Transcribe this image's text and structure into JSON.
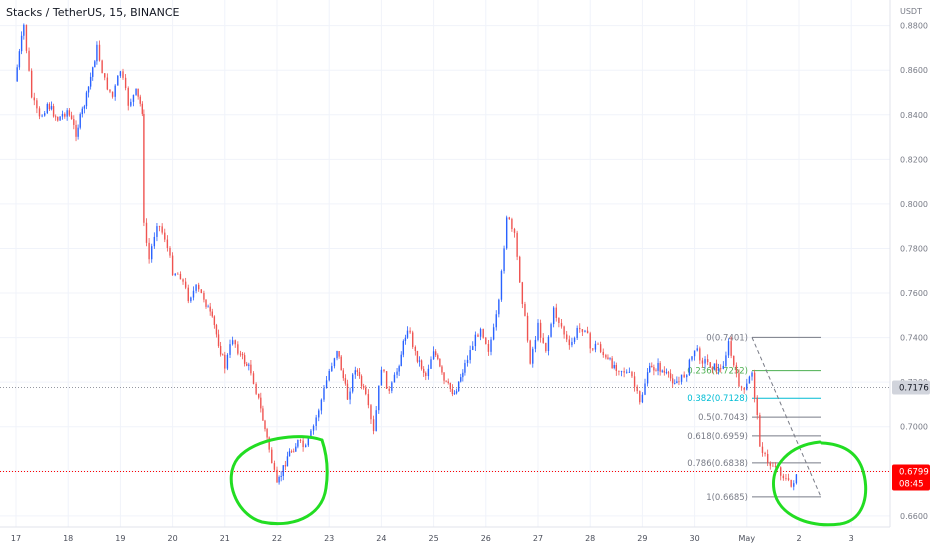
{
  "header": {
    "title": "Stacks / TetherUS, 15, BINANCE"
  },
  "axis": {
    "currency": "USDT",
    "y_ticks": [
      "0.8800",
      "0.8600",
      "0.8400",
      "0.8200",
      "0.8000",
      "0.7800",
      "0.7600",
      "0.7400",
      "0.7200",
      "0.7000",
      "0.6800",
      "0.6600"
    ],
    "x_ticks": [
      "17",
      "18",
      "19",
      "20",
      "21",
      "22",
      "23",
      "24",
      "25",
      "26",
      "27",
      "28",
      "29",
      "30",
      "May",
      "2",
      "3"
    ]
  },
  "price_labels": {
    "last_price": "0.6799",
    "countdown": "08:45",
    "ref_price": "0.7176"
  },
  "fib": {
    "levels": [
      {
        "label": "0(0.7401)",
        "value": 0.7401,
        "color": "#787b86"
      },
      {
        "label": "0.236(0.7252)",
        "value": 0.7252,
        "color": "#4caf50"
      },
      {
        "label": "0.382(0.7128)",
        "value": 0.7128,
        "color": "#00bcd4"
      },
      {
        "label": "0.5(0.7043)",
        "value": 0.7043,
        "color": "#787b86"
      },
      {
        "label": "0.618(0.6959)",
        "value": 0.6959,
        "color": "#787b86"
      },
      {
        "label": "0.786(0.6838)",
        "value": 0.6838,
        "color": "#787b86"
      },
      {
        "label": "1(0.6685)",
        "value": 0.6685,
        "color": "#787b86"
      }
    ]
  },
  "colors": {
    "up": "#2962ff",
    "down": "#ef5350",
    "annotation": "#22dd22",
    "last_price_bg": "#ff0000",
    "ref_price_bg": "#d1d4dc"
  },
  "chart_data": {
    "type": "line",
    "title": "Stacks / TetherUS, 15, BINANCE",
    "ylim": [
      0.655,
      0.8915
    ],
    "y_unit": "USDT",
    "series": [
      {
        "x": [
          16.98,
          17.15,
          17.3,
          17.45,
          17.6,
          17.8,
          17.98,
          18.15,
          18.35,
          18.55,
          18.7,
          18.85,
          19.0,
          19.15,
          19.3,
          19.42,
          19.45,
          19.55,
          19.7,
          19.85,
          20.0,
          20.15,
          20.3,
          20.45,
          20.6,
          20.8,
          21.0,
          21.15,
          21.3,
          21.5,
          21.65,
          21.85,
          22.0,
          22.2,
          22.4,
          22.55,
          22.7,
          22.85,
          23.0,
          23.15,
          23.35,
          23.5,
          23.7,
          23.85,
          24.0,
          24.15,
          24.3,
          24.5,
          24.65,
          24.85,
          25.0,
          25.2,
          25.4,
          25.6,
          25.75,
          25.9,
          26.05,
          26.15,
          26.25,
          26.4,
          26.55,
          26.7,
          26.85,
          27.0,
          27.15,
          27.3,
          27.45,
          27.6,
          27.75,
          27.9,
          28.0,
          28.15,
          28.3,
          28.5,
          28.65,
          28.8,
          28.95,
          29.1,
          29.3,
          29.5,
          29.7,
          29.85,
          30.0,
          30.15,
          30.3,
          30.5,
          30.65,
          30.8,
          30.95,
          31.1,
          31.25,
          31.4,
          31.55,
          31.7,
          31.85,
          31.95
        ],
        "y": [
          0.855,
          0.88,
          0.848,
          0.838,
          0.845,
          0.838,
          0.842,
          0.832,
          0.848,
          0.87,
          0.855,
          0.848,
          0.86,
          0.845,
          0.85,
          0.842,
          0.79,
          0.775,
          0.792,
          0.785,
          0.77,
          0.768,
          0.758,
          0.762,
          0.758,
          0.745,
          0.727,
          0.74,
          0.732,
          0.725,
          0.712,
          0.69,
          0.673,
          0.687,
          0.693,
          0.69,
          0.7,
          0.712,
          0.725,
          0.735,
          0.713,
          0.727,
          0.713,
          0.697,
          0.727,
          0.715,
          0.725,
          0.745,
          0.733,
          0.723,
          0.735,
          0.72,
          0.715,
          0.728,
          0.737,
          0.745,
          0.735,
          0.743,
          0.755,
          0.795,
          0.785,
          0.757,
          0.73,
          0.745,
          0.735,
          0.752,
          0.745,
          0.735,
          0.743,
          0.745,
          0.735,
          0.737,
          0.73,
          0.727,
          0.725,
          0.722,
          0.71,
          0.725,
          0.727,
          0.722,
          0.72,
          0.725,
          0.735,
          0.73,
          0.728,
          0.725,
          0.737,
          0.722,
          0.715,
          0.725,
          0.693,
          0.683,
          0.683,
          0.678,
          0.673,
          0.679
        ]
      }
    ]
  }
}
